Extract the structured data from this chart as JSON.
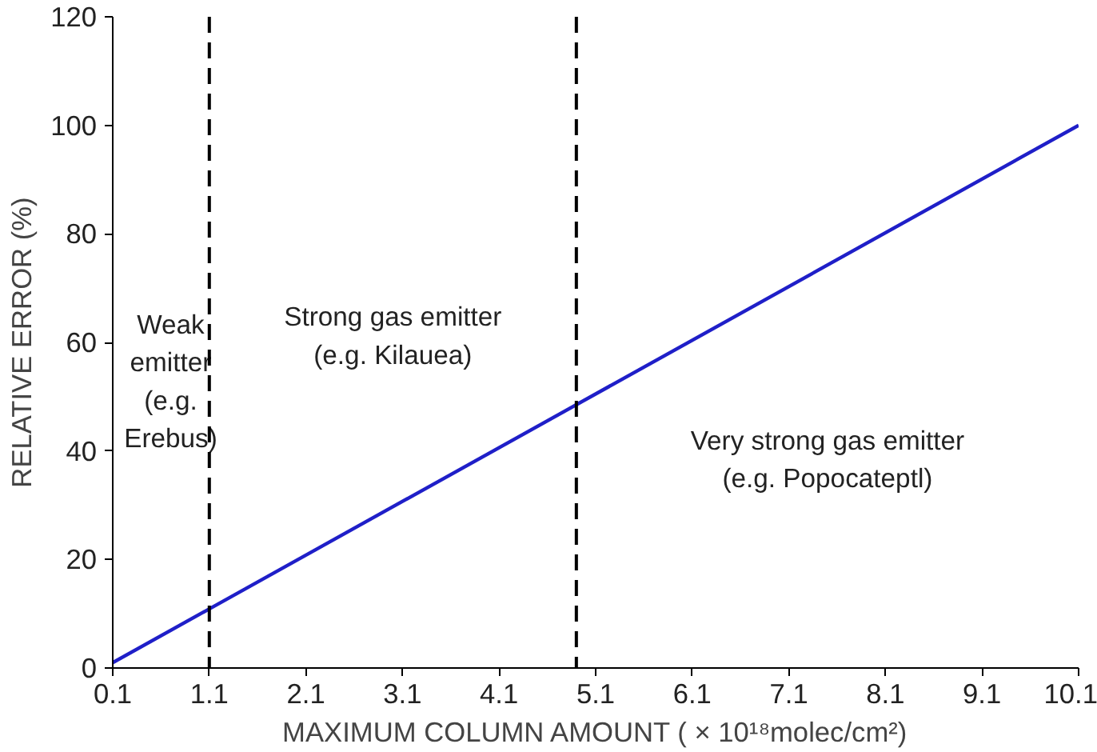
{
  "chart_data": {
    "type": "line",
    "xlabel": "MAXIMUM COLUMN AMOUNT ( × 10¹⁸molec/cm²)",
    "ylabel": "RELATIVE ERROR (%)",
    "x": [
      0.1,
      10.1
    ],
    "series": [
      {
        "color": "#1f1fc8",
        "values": [
          1,
          100
        ]
      }
    ],
    "xlim": [
      0.1,
      10.1
    ],
    "xticks": [
      0.1,
      1.1,
      2.1,
      3.1,
      4.1,
      5.1,
      6.1,
      7.1,
      8.1,
      9.1,
      10.1
    ],
    "ylim": [
      0,
      120
    ],
    "yticks": [
      0,
      20,
      40,
      60,
      80,
      100,
      120
    ],
    "ref_lines": [
      {
        "axis": "x",
        "value": 1.1,
        "line_style": "dashed",
        "color": "#000000"
      },
      {
        "axis": "x",
        "value": 4.9,
        "line_style": "dashed",
        "color": "#000000"
      }
    ],
    "annotations": [
      "Weak\nemitter\n(e.g.\nErebus)",
      "Strong gas emitter\n(e.g. Kilauea)",
      "Very strong gas emitter\n(e.g. Popocateptl)"
    ],
    "grid": false,
    "marker": "none",
    "line_style": "solid"
  }
}
